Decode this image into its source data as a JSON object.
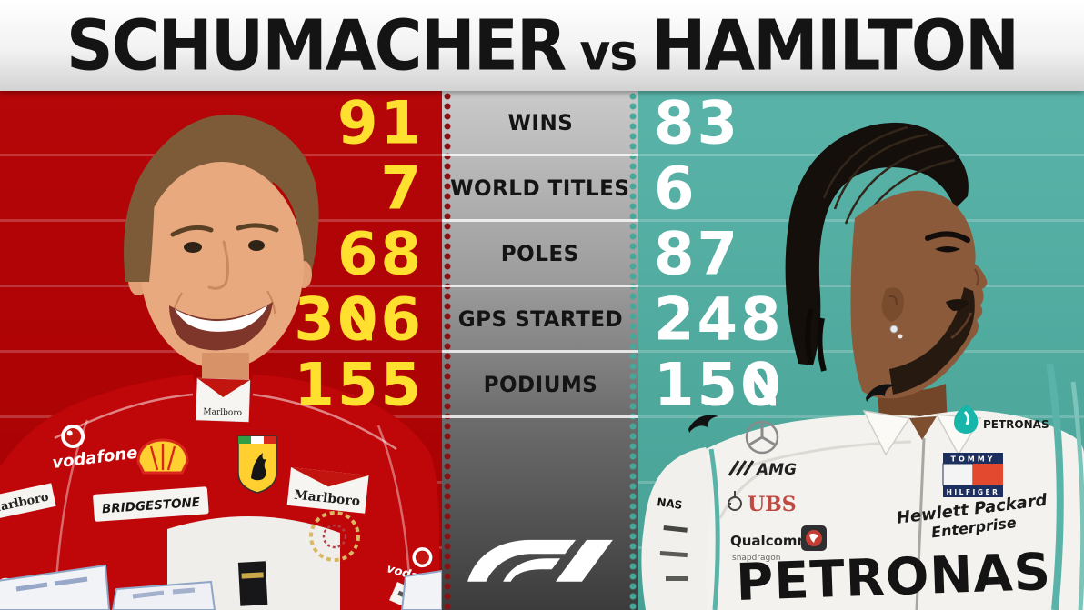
{
  "title": {
    "left_name": "SCHUMACHER",
    "separator": "vs",
    "right_name": "HAMILTON"
  },
  "chart_data": {
    "type": "table",
    "title": "SCHUMACHER vs HAMILTON",
    "categories": [
      "WINS",
      "WORLD TITLES",
      "POLES",
      "GPS STARTED",
      "PODIUMS"
    ],
    "series": [
      {
        "name": "SCHUMACHER",
        "values": [
          91,
          7,
          68,
          306,
          155
        ]
      },
      {
        "name": "HAMILTON",
        "values": [
          83,
          6,
          87,
          248,
          150
        ]
      }
    ],
    "layout": {
      "left_value_color": "#ffe02e",
      "right_value_color": "#ffffff",
      "left_panel_color": "#b00305",
      "right_panel_color": "#4fa99d",
      "center_band": "grey vertical gradient with white row dividers",
      "value_style": "slashed zeros, F1 display lettering",
      "legend_position": "title band"
    }
  },
  "left_driver": {
    "sponsors": {
      "vodafone": "vodafone",
      "marlboro": "Marlboro",
      "bridgestone": "BRIDGESTONE"
    }
  },
  "right_driver": {
    "sponsors": {
      "petronas": "PETRONAS",
      "petronas_big": "PETRONAS",
      "amg": "AMG",
      "ubs": "UBS",
      "tommy": "TOMMY",
      "hilfiger": "HILFIGER",
      "hpe_line1": "Hewlett Packard",
      "hpe_line2": "Enterprise",
      "qualcomm": "Qualcomm",
      "snapdragon": "snapdragon",
      "arm_text": "NAS"
    }
  },
  "colors": {
    "ferrari_red": "#b00305",
    "mercedes_teal": "#4fa99d",
    "stat_yellow": "#ffe02e",
    "stat_white": "#ffffff",
    "title_text": "#141414"
  }
}
